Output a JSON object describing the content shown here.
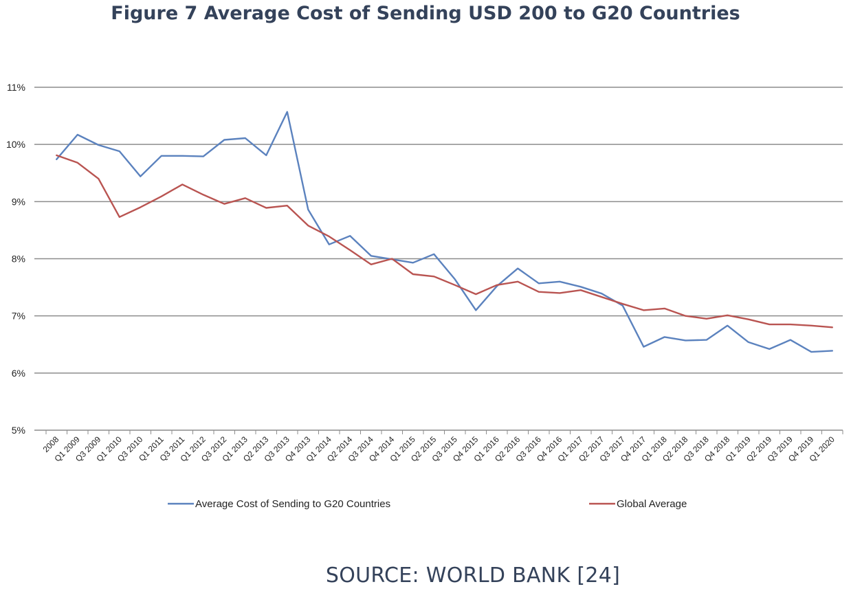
{
  "title": "Figure 7 Average Cost of Sending USD 200 to G20 Countries",
  "source": "SOURCE: WORLD BANK [24]",
  "chart_data": {
    "type": "line",
    "grid": true,
    "legend_position": "bottom",
    "ylim": [
      5,
      11
    ],
    "y_ticks": [
      "5%",
      "6%",
      "7%",
      "8%",
      "9%",
      "10%",
      "11%"
    ],
    "categories": [
      "2008",
      "Q1 2009",
      "Q3 2009",
      "Q1 2010",
      "Q3 2010",
      "Q1 2011",
      "Q3 2011",
      "Q1 2012",
      "Q3 2012",
      "Q1 2013",
      "Q2 2013",
      "Q3 2013",
      "Q4 2013",
      "Q1 2014",
      "Q2 2014",
      "Q3 2014",
      "Q4 2014",
      "Q1 2015",
      "Q2 2015",
      "Q3 2015",
      "Q4 2015",
      "Q1 2016",
      "Q2 2016",
      "Q3 2016",
      "Q4 2016",
      "Q1 2017",
      "Q2 2017",
      "Q3 2017",
      "Q4 2017",
      "Q1 2018",
      "Q2 2018",
      "Q3 2018",
      "Q4 2018",
      "Q1 2019",
      "Q2 2019",
      "Q3 2019",
      "Q4 2019",
      "Q1 2020"
    ],
    "series": [
      {
        "name": "Average Cost of Sending to G20 Countries",
        "color": "#5b82be",
        "values": [
          9.74,
          10.17,
          9.99,
          9.88,
          9.44,
          9.8,
          9.8,
          9.79,
          10.08,
          10.11,
          9.81,
          10.57,
          8.86,
          8.25,
          8.4,
          8.05,
          7.99,
          7.93,
          8.08,
          7.64,
          7.1,
          7.52,
          7.83,
          7.57,
          7.6,
          7.51,
          7.39,
          7.18,
          6.46,
          6.63,
          6.57,
          6.58,
          6.83,
          6.54,
          6.42,
          6.58,
          6.37,
          6.39
        ]
      },
      {
        "name": "Global Average",
        "color": "#b95451",
        "values": [
          9.81,
          9.68,
          9.4,
          8.73,
          8.9,
          9.09,
          9.3,
          9.12,
          8.96,
          9.06,
          8.89,
          8.93,
          8.58,
          8.39,
          8.15,
          7.9,
          8.0,
          7.73,
          7.69,
          7.54,
          7.38,
          7.54,
          7.6,
          7.42,
          7.4,
          7.45,
          7.33,
          7.21,
          7.1,
          7.13,
          7.0,
          6.95,
          7.01,
          6.94,
          6.85,
          6.85,
          6.83,
          6.8
        ]
      }
    ]
  }
}
